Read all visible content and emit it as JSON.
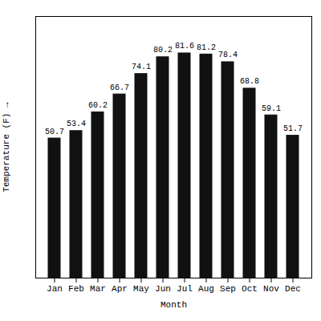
{
  "chart_data": {
    "type": "bar",
    "categories": [
      "Jan",
      "Feb",
      "Mar",
      "Apr",
      "May",
      "Jun",
      "Jul",
      "Aug",
      "Sep",
      "Oct",
      "Nov",
      "Dec"
    ],
    "values": [
      50.7,
      53.4,
      60.2,
      66.7,
      74.1,
      80.2,
      81.6,
      81.2,
      78.4,
      68.8,
      59.1,
      51.7
    ],
    "color": "#111111",
    "xlabel": "Month",
    "ylabel": "Temperature (F)",
    "ylim": [
      0,
      95
    ],
    "grid": false,
    "data_labels": true,
    "tick_labels": "x"
  }
}
